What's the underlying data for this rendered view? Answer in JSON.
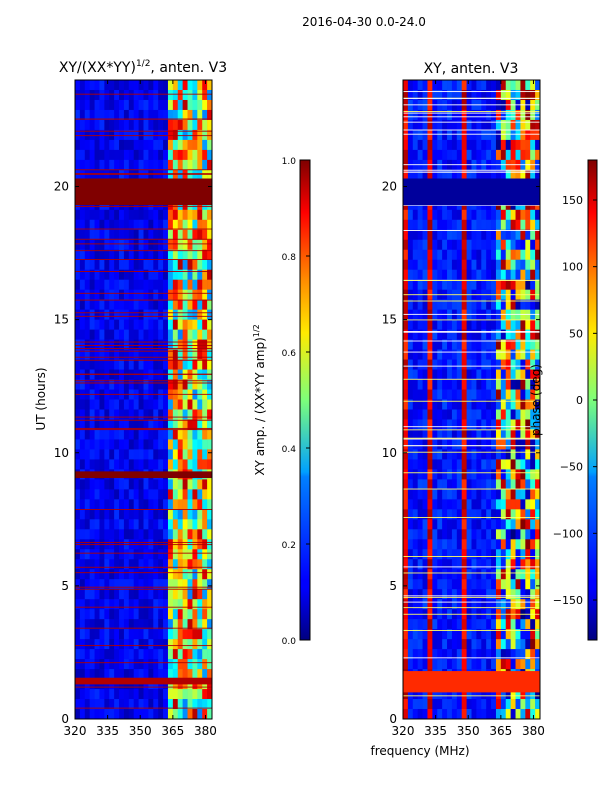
{
  "figure": {
    "suptitle": "2016-04-30 0.0-24.0",
    "xlabel": "frequency (MHz)"
  },
  "chart_data": [
    {
      "type": "heatmap",
      "title_main": "XY/(XX*YY)",
      "title_sup": "1/2",
      "title_tail": ", anten. V3",
      "ylabel": "UT (hours)",
      "xlim": [
        320,
        383
      ],
      "ylim": [
        0,
        24
      ],
      "xticks": [
        320,
        335,
        350,
        365,
        380
      ],
      "yticks": [
        0,
        5,
        10,
        15,
        20
      ],
      "colorbar": {
        "label_main": "XY amp. / (XX*YY amp)",
        "label_sup": "1/2",
        "range": [
          0.0,
          1.0
        ],
        "ticks": [
          "0.0",
          "0.2",
          "0.4",
          "0.6",
          "0.8",
          "1.0"
        ],
        "colormap": "jet"
      },
      "bands": [
        {
          "from": 19.3,
          "to": 20.3,
          "value": 1.0
        },
        {
          "from": 9.05,
          "to": 9.3,
          "value": 1.0
        },
        {
          "from": 1.3,
          "to": 1.55,
          "value": 0.95
        }
      ]
    },
    {
      "type": "heatmap",
      "title_main": "XY, anten. V3",
      "xlim": [
        320,
        383
      ],
      "ylim": [
        0,
        24
      ],
      "xticks": [
        320,
        335,
        350,
        365,
        380
      ],
      "yticks": [
        0,
        5,
        10,
        15,
        20
      ],
      "colorbar": {
        "label_main": "phase (deg)",
        "range": [
          -180,
          180
        ],
        "ticks": [
          "−150",
          "−100",
          "−50",
          "0",
          "50",
          "100",
          "150"
        ],
        "colormap": "jet"
      },
      "bands": [
        {
          "from": 19.3,
          "to": 20.3,
          "value": -170
        },
        {
          "from": 1.0,
          "to": 1.8,
          "value": 120
        }
      ]
    }
  ],
  "colors": {
    "jet_low": "#00007f",
    "jet_high": "#7f0000"
  }
}
